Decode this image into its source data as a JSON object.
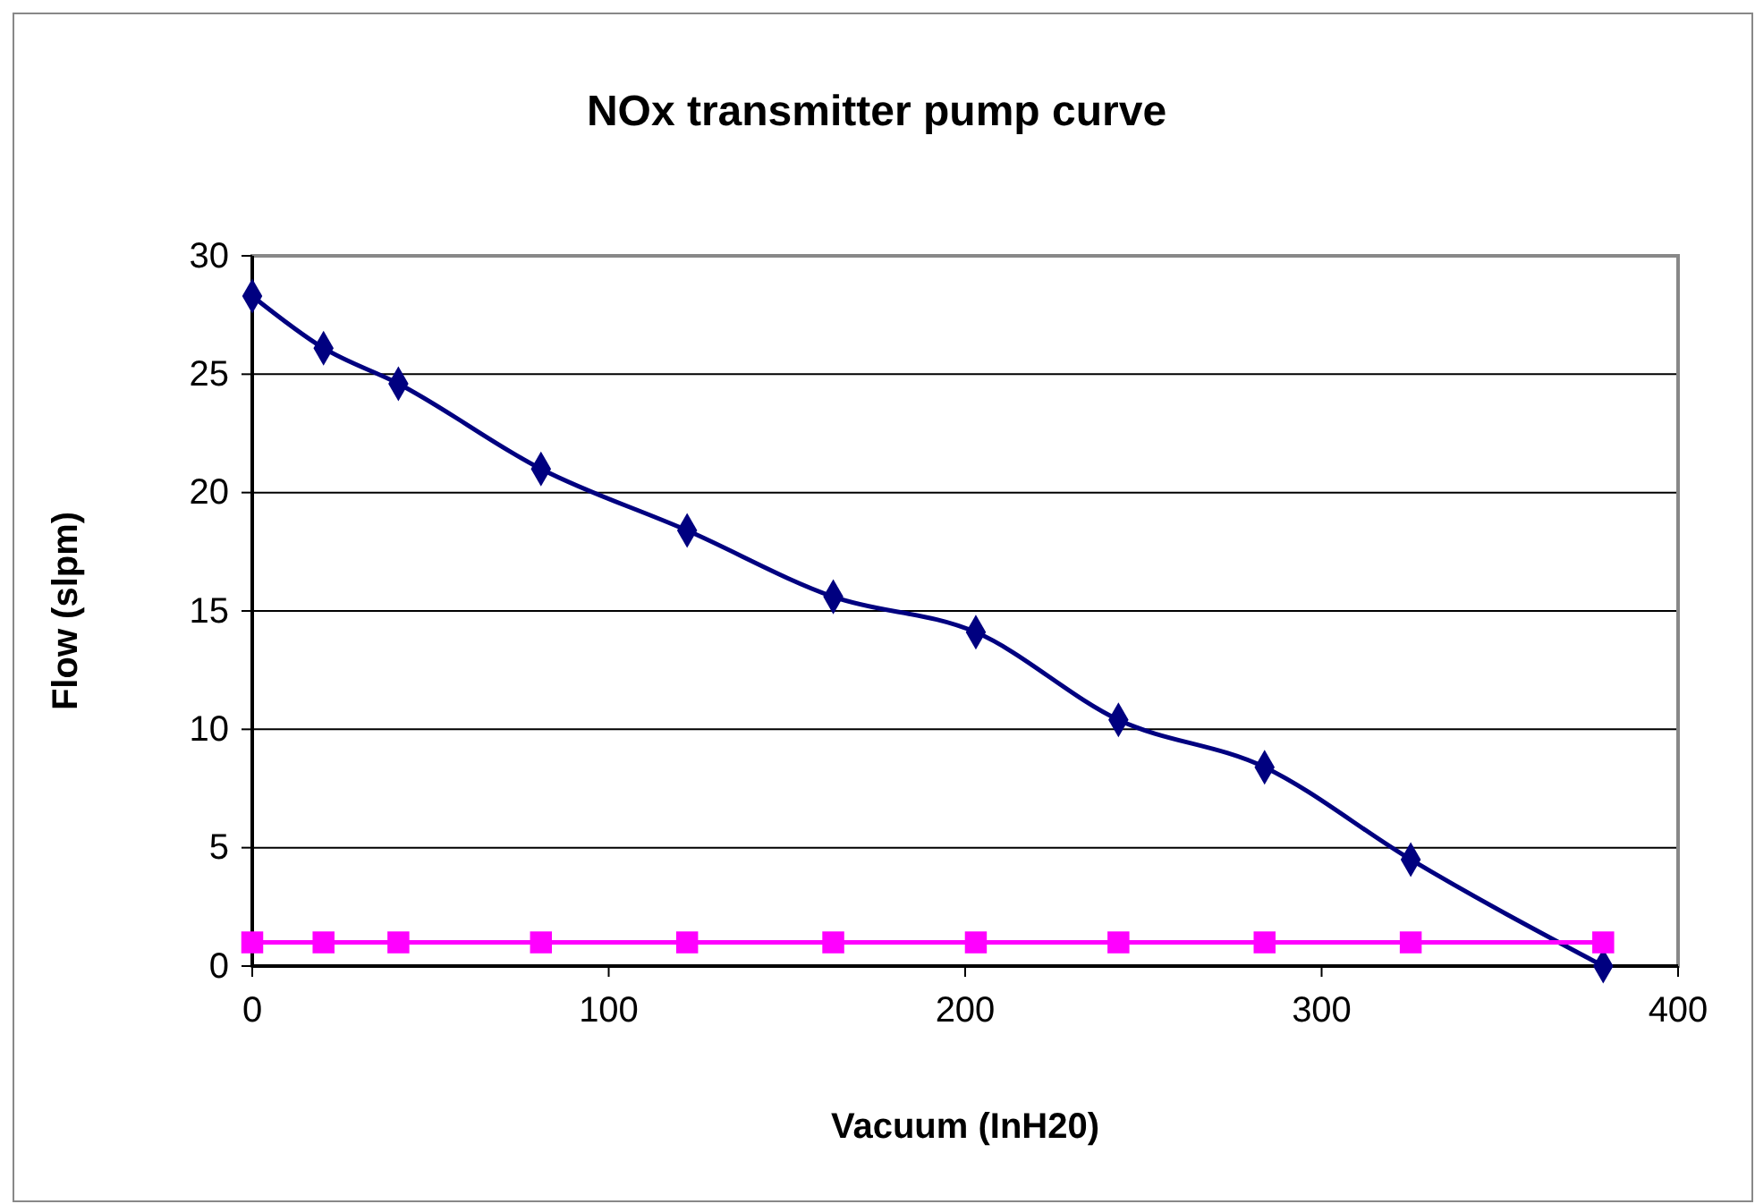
{
  "chart_data": {
    "type": "line",
    "title": "NOx transmitter pump curve",
    "xlabel": "Vacuum (InH20)",
    "ylabel": "Flow (slpm)",
    "x": [
      0,
      20,
      41,
      81,
      122,
      163,
      203,
      243,
      284,
      325,
      379
    ],
    "series": [
      {
        "color": "#000080",
        "marker": "diamond",
        "values": [
          28.3,
          26.1,
          24.6,
          21.0,
          18.4,
          15.6,
          14.1,
          10.4,
          8.4,
          4.5,
          0
        ]
      },
      {
        "color": "#ff00ff",
        "marker": "square",
        "values": [
          1,
          1,
          1,
          1,
          1,
          1,
          1,
          1,
          1,
          1,
          1
        ]
      }
    ],
    "xlim": [
      0,
      400
    ],
    "xticks": [
      0,
      100,
      200,
      300,
      400
    ],
    "ylim": [
      0,
      30
    ],
    "yticks": [
      0,
      5,
      10,
      15,
      20,
      25,
      30
    ],
    "grid": "y",
    "line_style": "solid"
  }
}
